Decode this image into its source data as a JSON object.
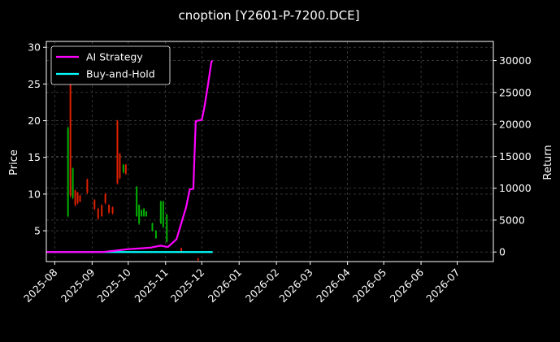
{
  "chart_data": {
    "type": "line",
    "title": "cnoption [Y2601-P-7200.DCE]",
    "ylabel_left": "Price",
    "ylabel_right": "Return",
    "x_ticks": [
      "2025-08",
      "2025-09",
      "2025-10",
      "2025-11",
      "2025-12",
      "2026-01",
      "2026-02",
      "2026-03",
      "2026-04",
      "2026-05",
      "2026-06",
      "2026-07"
    ],
    "xlim": [
      "2025-07-25",
      "2026-07-31"
    ],
    "ylim_left": [
      0.8,
      30.8
    ],
    "ylim_right": [
      -1500,
      33000
    ],
    "y_ticks_left": [
      5,
      10,
      15,
      20,
      25,
      30
    ],
    "y_ticks_right": [
      0,
      5000,
      10000,
      15000,
      20000,
      25000,
      30000
    ],
    "grid": true,
    "legend_position": "top-left",
    "colors": {
      "background": "#000000",
      "ai_strategy": "#ff00ff",
      "buy_and_hold": "#00ffff",
      "candle_up": "#00b000",
      "candle_down": "#e02000",
      "grid": "#555555"
    },
    "series": [
      {
        "name": "AI Strategy",
        "axis": "right",
        "x": [
          "2025-07-25",
          "2025-09-10",
          "2025-09-20",
          "2025-10-01",
          "2025-10-10",
          "2025-10-20",
          "2025-10-25",
          "2025-10-28",
          "2025-11-01",
          "2025-11-03",
          "2025-11-06",
          "2025-11-10",
          "2025-11-14",
          "2025-11-18",
          "2025-11-21",
          "2025-11-24",
          "2025-11-26",
          "2025-11-28",
          "2025-12-01",
          "2025-12-03",
          "2025-12-06",
          "2025-12-09",
          "2025-12-10"
        ],
        "values": [
          0,
          0,
          200,
          450,
          550,
          700,
          900,
          1000,
          850,
          800,
          1300,
          2000,
          4500,
          7000,
          9800,
          9900,
          20500,
          20600,
          20700,
          22500,
          26000,
          29800,
          30000
        ]
      },
      {
        "name": "Buy-and-Hold",
        "axis": "right",
        "x": [
          "2025-07-25",
          "2025-12-10"
        ],
        "values": [
          0,
          0
        ]
      },
      {
        "name": "price",
        "type": "candlestick",
        "axis": "left",
        "points": [
          {
            "d": "2025-08-12",
            "o": 7.0,
            "c": 19.0,
            "h": 19.2,
            "l": 6.8
          },
          {
            "d": "2025-08-14",
            "o": 27.0,
            "c": 9.8,
            "h": 28.0,
            "l": 9.5
          },
          {
            "d": "2025-08-16",
            "o": 9.5,
            "c": 13.5,
            "h": 13.6,
            "l": 9.3
          },
          {
            "d": "2025-08-18",
            "o": 10.5,
            "c": 8.5,
            "h": 10.6,
            "l": 8.3
          },
          {
            "d": "2025-08-20",
            "o": 10.2,
            "c": 8.8,
            "h": 10.3,
            "l": 8.6
          },
          {
            "d": "2025-08-22",
            "o": 9.8,
            "c": 9.0,
            "h": 9.9,
            "l": 8.9
          },
          {
            "d": "2025-08-28",
            "o": 12.0,
            "c": 10.2,
            "h": 12.1,
            "l": 10.0
          },
          {
            "d": "2025-09-03",
            "o": 9.2,
            "c": 8.0,
            "h": 9.3,
            "l": 7.8
          },
          {
            "d": "2025-09-06",
            "o": 8.0,
            "c": 6.7,
            "h": 8.1,
            "l": 6.5
          },
          {
            "d": "2025-09-09",
            "o": 8.5,
            "c": 7.0,
            "h": 8.6,
            "l": 6.9
          },
          {
            "d": "2025-09-12",
            "o": 10.0,
            "c": 8.8,
            "h": 10.1,
            "l": 8.6
          },
          {
            "d": "2025-09-15",
            "o": 8.5,
            "c": 7.5,
            "h": 8.6,
            "l": 7.3
          },
          {
            "d": "2025-09-18",
            "o": 8.2,
            "c": 7.4,
            "h": 8.3,
            "l": 7.2
          },
          {
            "d": "2025-09-22",
            "o": 20.0,
            "c": 11.5,
            "h": 20.1,
            "l": 11.3
          },
          {
            "d": "2025-09-24",
            "o": 15.5,
            "c": 12.2,
            "h": 15.6,
            "l": 12.0
          },
          {
            "d": "2025-09-27",
            "o": 13.0,
            "c": 14.0,
            "h": 14.1,
            "l": 12.8
          },
          {
            "d": "2025-09-29",
            "o": 14.0,
            "c": 12.8,
            "h": 14.1,
            "l": 12.6
          },
          {
            "d": "2025-10-08",
            "o": 7.0,
            "c": 11.0,
            "h": 11.1,
            "l": 6.9
          },
          {
            "d": "2025-10-10",
            "o": 6.0,
            "c": 8.5,
            "h": 8.6,
            "l": 5.8
          },
          {
            "d": "2025-10-12",
            "o": 7.0,
            "c": 7.8,
            "h": 7.9,
            "l": 6.9
          },
          {
            "d": "2025-10-14",
            "o": 7.0,
            "c": 8.0,
            "h": 8.1,
            "l": 6.9
          },
          {
            "d": "2025-10-16",
            "o": 7.0,
            "c": 7.6,
            "h": 7.7,
            "l": 6.9
          },
          {
            "d": "2025-10-21",
            "o": 5.0,
            "c": 6.0,
            "h": 6.1,
            "l": 4.9
          },
          {
            "d": "2025-10-24",
            "o": 4.0,
            "c": 5.0,
            "h": 5.1,
            "l": 3.9
          },
          {
            "d": "2025-10-28",
            "o": 6.0,
            "c": 9.0,
            "h": 9.1,
            "l": 5.9
          },
          {
            "d": "2025-10-30",
            "o": 5.5,
            "c": 9.0,
            "h": 9.1,
            "l": 5.4
          },
          {
            "d": "2025-11-02",
            "o": 3.5,
            "c": 7.2,
            "h": 7.3,
            "l": 3.4
          },
          {
            "d": "2025-11-14",
            "o": 2.6,
            "c": 2.2,
            "h": 2.7,
            "l": 2.1
          },
          {
            "d": "2025-11-28",
            "o": 1.2,
            "c": 1.0,
            "h": 1.3,
            "l": 0.9
          }
        ]
      }
    ]
  }
}
